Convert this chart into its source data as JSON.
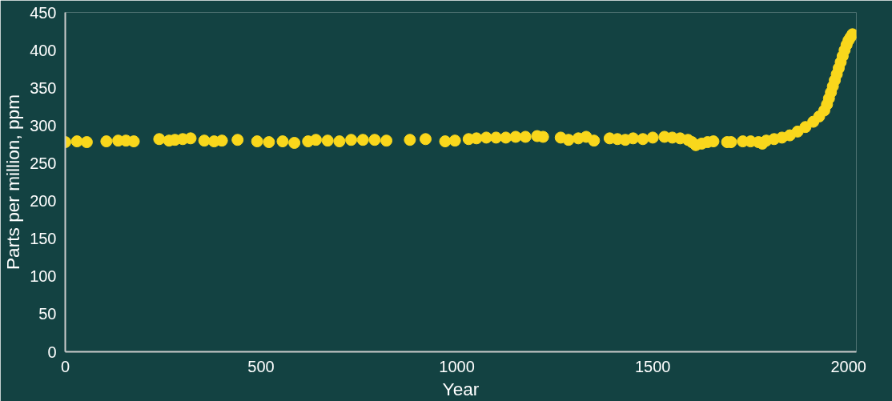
{
  "chart_data": {
    "type": "scatter",
    "xlabel": "Year",
    "ylabel": "Parts per million, ppm",
    "xlim": [
      0,
      2020
    ],
    "ylim": [
      0,
      450
    ],
    "xticks": [
      0,
      500,
      1000,
      1500,
      2000
    ],
    "yticks": [
      0,
      50,
      100,
      150,
      200,
      250,
      300,
      350,
      400,
      450
    ],
    "marker": "circle",
    "series": [
      {
        "color": "#f9d71c",
        "x": [
          0,
          30,
          55,
          105,
          135,
          155,
          175,
          240,
          265,
          280,
          300,
          320,
          355,
          380,
          400,
          440,
          490,
          520,
          555,
          585,
          620,
          640,
          670,
          700,
          730,
          760,
          790,
          820,
          880,
          920,
          970,
          995,
          1030,
          1050,
          1075,
          1100,
          1125,
          1150,
          1175,
          1205,
          1220,
          1265,
          1285,
          1310,
          1330,
          1350,
          1390,
          1410,
          1430,
          1450,
          1475,
          1500,
          1530,
          1550,
          1570,
          1590,
          1600,
          1610,
          1625,
          1640,
          1655,
          1690,
          1700,
          1730,
          1750,
          1770,
          1780,
          1790,
          1810,
          1830,
          1850,
          1870,
          1890,
          1910,
          1925,
          1938,
          1945,
          1950,
          1955,
          1960,
          1965,
          1970,
          1975,
          1980,
          1985,
          1990,
          1995,
          2000,
          2005,
          2010
        ],
        "values": [
          278,
          279,
          278,
          279,
          280,
          280,
          279,
          282,
          280,
          281,
          282,
          283,
          280,
          279,
          280,
          281,
          279,
          278,
          279,
          277,
          279,
          281,
          280,
          279,
          281,
          281,
          281,
          280,
          281,
          282,
          279,
          280,
          282,
          283,
          284,
          284,
          284,
          285,
          285,
          286,
          285,
          284,
          281,
          283,
          285,
          280,
          283,
          282,
          281,
          283,
          282,
          284,
          285,
          284,
          283,
          281,
          278,
          274,
          276,
          278,
          279,
          278,
          278,
          279,
          279,
          278,
          276,
          280,
          282,
          284,
          287,
          292,
          298,
          305,
          312,
          320,
          328,
          336,
          344,
          352,
          360,
          368,
          376,
          384,
          392,
          400,
          407,
          413,
          417,
          421
        ]
      }
    ]
  }
}
